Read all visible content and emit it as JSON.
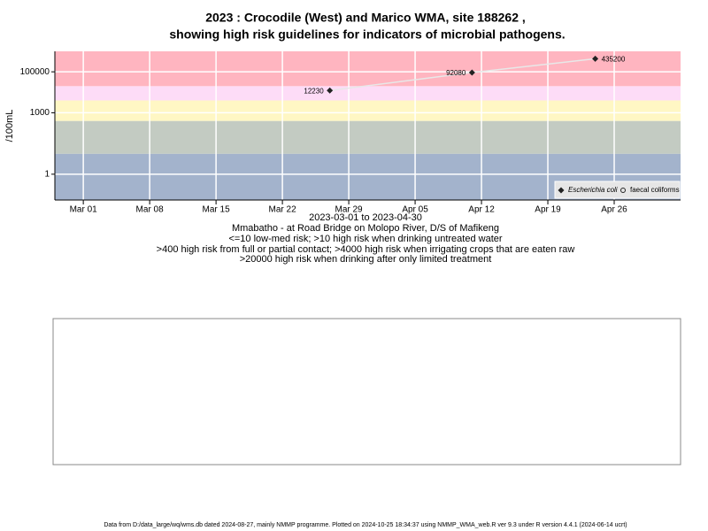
{
  "chart_data": {
    "type": "line",
    "title": [
      "2023 : Crocodile (West) and Marico WMA, site 188262 ,",
      "showing high risk guidelines for indicators of microbial pathogens."
    ],
    "y_label": "/100mL",
    "x_label": "2023-03-01 to 2023-04-30",
    "site": "Mmabatho - at Road Bridge on Molopo River, D/S of Mafikeng",
    "notes": [
      "<=10 low-med risk; >10 high risk when drinking untreated water",
      ">400 high risk from full or partial contact; >4000 high risk when irrigating crops that are eaten raw",
      ">20000 high risk when drinking after only limited treatment"
    ],
    "footer": "Data from D:/data_large/wq/wms.db dated 2024-08-27, mainly NMMP programme. Plotted on 2024-10-25 18:34:37 using NMMP_WMA_web.R ver 9.3 under R version 4.4.1 (2024-06-14 ucrt)",
    "x": [
      "2023-03-27",
      "2023-04-11",
      "2023-04-24"
    ],
    "series": [
      {
        "name": "Escherichia coli",
        "color": "#222222",
        "marker": "diamond",
        "values": [
          12230,
          92080,
          435200
        ],
        "line_color": "#e8e8e8"
      },
      {
        "name": "faecal coliforms",
        "color": "#222222",
        "marker": "circle",
        "values": [
          null,
          null,
          null
        ]
      }
    ],
    "log_y": true,
    "ylim": [
      0.055,
      1000000
    ],
    "yticks": [
      1,
      1000,
      100000
    ],
    "xlim": [
      "2023-02-26",
      "2023-05-03"
    ],
    "xticks": [
      {
        "value": "2023-03-01",
        "label": "Mar 01"
      },
      {
        "value": "2023-03-08",
        "label": "Mar 08"
      },
      {
        "value": "2023-03-15",
        "label": "Mar 15"
      },
      {
        "value": "2023-03-22",
        "label": "Mar 22"
      },
      {
        "value": "2023-03-29",
        "label": "Mar 29"
      },
      {
        "value": "2023-04-05",
        "label": "Apr 05"
      },
      {
        "value": "2023-04-12",
        "label": "Apr 12"
      },
      {
        "value": "2023-04-19",
        "label": "Apr 19"
      },
      {
        "value": "2023-04-26",
        "label": "Apr 26"
      }
    ],
    "band_limits": [
      10,
      400,
      4000,
      20000
    ],
    "band_colors": [
      "#a3b3cc",
      "#c3cbc2",
      "#fff7c4",
      "#fddcf7",
      "#ffb5c0"
    ],
    "grid": true,
    "legend": "bottom-right"
  }
}
